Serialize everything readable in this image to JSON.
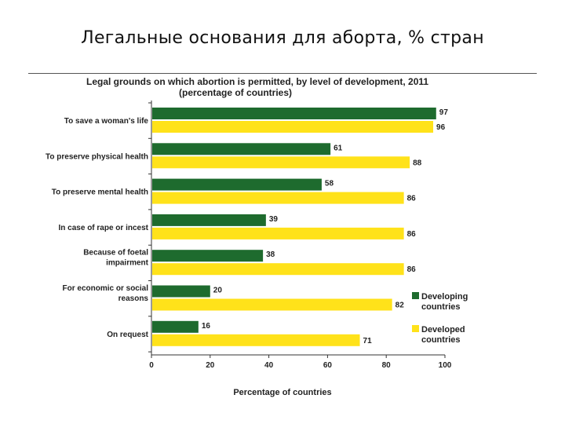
{
  "slide": {
    "title": "Легальные основания для аборта, % стран"
  },
  "colors": {
    "developing": "#1e6b2e",
    "developed": "#ffe21a",
    "axis": "#333333",
    "text": "#222222"
  },
  "chart_data": {
    "type": "bar",
    "orientation": "horizontal",
    "title": "Legal grounds on which abortion is permitted, by level of development, 2011",
    "subtitle": "(percentage of countries)",
    "categories": [
      "To save a woman's life",
      "To preserve physical health",
      "To preserve mental health",
      "In case of rape or incest",
      "Because of foetal impairment",
      "For economic or social reasons",
      "On request"
    ],
    "category_lines": [
      [
        "To save a woman's life"
      ],
      [
        "To preserve physical health"
      ],
      [
        "To preserve mental health"
      ],
      [
        "In case of rape or incest"
      ],
      [
        "Because of foetal",
        "impairment"
      ],
      [
        "For economic or social",
        "reasons"
      ],
      [
        "On request"
      ]
    ],
    "series": [
      {
        "name": "Developing countries",
        "name_lines": [
          "Developing",
          "countries"
        ],
        "values": [
          97,
          61,
          58,
          39,
          38,
          20,
          16
        ]
      },
      {
        "name": "Developed countries",
        "name_lines": [
          "Developed",
          "countries"
        ],
        "values": [
          96,
          88,
          86,
          86,
          86,
          82,
          71
        ]
      }
    ],
    "xlabel": "Percentage of countries",
    "ylabel": "",
    "xlim": [
      0,
      100
    ],
    "xticks": [
      0,
      20,
      40,
      60,
      80,
      100
    ],
    "grid": false,
    "legend_position": "right"
  }
}
